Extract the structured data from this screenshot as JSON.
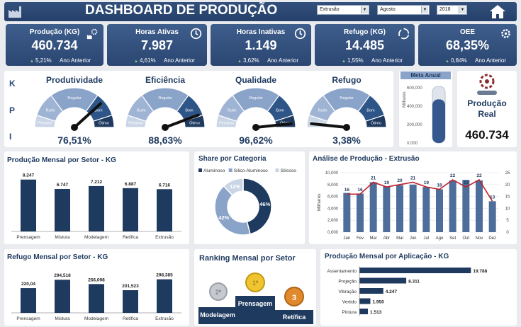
{
  "header": {
    "title": "DASHBOARD DE PRODUÇÃO",
    "filters": [
      {
        "name": "process-select",
        "value": "Extrusão"
      },
      {
        "name": "month-select",
        "value": "Agosto"
      },
      {
        "name": "year-select",
        "value": "2018"
      }
    ]
  },
  "cards": [
    {
      "label": "Produção (KG)",
      "value": "460.734",
      "change": "5,21%",
      "compare": "Ano Anterior",
      "icon": "factory-gear-icon"
    },
    {
      "label": "Horas Ativas",
      "value": "7.987",
      "change": "4,61%",
      "compare": "Ano Anterior",
      "icon": "clock-icon"
    },
    {
      "label": "Horas Inativas",
      "value": "1.149",
      "change": "3,62%",
      "compare": "Ano Anterior",
      "icon": "clock-icon"
    },
    {
      "label": "Refugo (KG)",
      "value": "14.485",
      "change": "1,55%",
      "compare": "Ano Anterior",
      "icon": "recycle-icon"
    },
    {
      "label": "OEE",
      "value": "68,35%",
      "change": "0,84%",
      "compare": "Ano Anterior",
      "icon": "gear-icon"
    }
  ],
  "kpi": {
    "letters": [
      "K",
      "P",
      "I"
    ],
    "gauge_labels": [
      "Péssimo",
      "Ruim",
      "Regular",
      "Bom",
      "Ótimo"
    ],
    "gauges": [
      {
        "title": "Produtividade",
        "value": "76,51%",
        "needle": 0.7651
      },
      {
        "title": "Eficiência",
        "value": "88,63%",
        "needle": 0.8863
      },
      {
        "title": "Qualidade",
        "value": "96,62%",
        "needle": 0.9662
      },
      {
        "title": "Refugo",
        "value": "3,38%",
        "needle": 0.0338
      }
    ]
  },
  "meta": {
    "title": "Meta Anual",
    "axis_label": "Milhares",
    "ticks": [
      "600,000",
      "400,000",
      "200,000",
      "0,000"
    ],
    "fill_fraction": 0.77
  },
  "producao_real": {
    "title_line1": "Produção",
    "title_line2": "Real",
    "value": "460.734"
  },
  "section_titles": {
    "setor": "Produção Mensal por Setor - KG",
    "share": "Share por Categoria",
    "analise": "Análise de Produção - Extrusão",
    "refugo": "Refugo Mensal por Setor - KG",
    "ranking": "Ranking Mensal por Setor",
    "aplicacao": "Produção Mensal por Aplicação - KG"
  },
  "ranking": {
    "first": "Prensagem",
    "second": "Modelagem",
    "third": "Retífica",
    "medal_labels": [
      "1º",
      "2º",
      "3"
    ]
  },
  "chart_data": [
    {
      "type": "bar",
      "title": "Produção Mensal por Setor - KG",
      "categories": [
        "Prensagem",
        "Mistura",
        "Modelagem",
        "Retífica",
        "Extrusão"
      ],
      "values": [
        8247,
        6747,
        7212,
        6887,
        6716
      ],
      "labels": [
        "8.247",
        "6.747",
        "7.212",
        "6.887",
        "6.716"
      ],
      "ylim": [
        0,
        9000
      ]
    },
    {
      "type": "pie",
      "title": "Share por Categoria",
      "categories": [
        "Aluminoso",
        "Silico-Aluminoso",
        "Silicoso"
      ],
      "values": [
        46,
        42,
        12
      ],
      "labels": [
        "46%",
        "42%",
        "12%"
      ],
      "colors": [
        "#1f3a5f",
        "#8aa3c8",
        "#c9d5e6"
      ]
    },
    {
      "type": "bar",
      "title": "Análise de Produção - Extrusão",
      "categories": [
        "Jan",
        "Fev",
        "Mar",
        "Abr",
        "Mai",
        "Jun",
        "Jul",
        "Ago",
        "Set",
        "Out",
        "Nov",
        "Dez"
      ],
      "ylabel": "Milhares",
      "y_ticks": [
        "0,000",
        "2,000",
        "4,000",
        "6,000",
        "8,000",
        "10,000"
      ],
      "y2_ticks": [
        "0",
        "5",
        "10",
        "15",
        "20",
        "25"
      ],
      "ylim": [
        0,
        10000
      ],
      "y2lim": [
        0,
        25
      ],
      "series": [
        {
          "name": "Produção",
          "type": "bar",
          "values": [
            6600,
            6500,
            8400,
            7700,
            7900,
            8000,
            7600,
            7200,
            8700,
            8800,
            8700,
            5200
          ]
        },
        {
          "name": "Linha",
          "type": "line",
          "values": [
            16,
            16,
            21,
            19,
            20,
            21,
            19,
            18,
            22,
            19,
            22,
            13
          ],
          "labels": [
            "16",
            "16",
            "21",
            "19",
            "20",
            "21",
            "19",
            "18",
            "22",
            "19",
            "22",
            "13"
          ]
        }
      ]
    },
    {
      "type": "bar",
      "title": "Refugo Mensal por Setor - KG",
      "categories": [
        "Prensagem",
        "Mistura",
        "Modelagem",
        "Retífica",
        "Extrusão"
      ],
      "values": [
        220.04,
        294.518,
        256.098,
        201.523,
        298.385
      ],
      "labels": [
        "220,04",
        "294,518",
        "256,098",
        "201,523",
        "298,385"
      ],
      "ylim": [
        0,
        340
      ]
    },
    {
      "type": "bar",
      "orientation": "horizontal",
      "title": "Produção Mensal por Aplicação - KG",
      "categories": [
        "Assentamento",
        "Projeção",
        "Vibração",
        "Vertido",
        "Pintura"
      ],
      "values": [
        19788,
        8311,
        4247,
        1950,
        1513
      ],
      "labels": [
        "19.788",
        "8.311",
        "4.247",
        "1.950",
        "1.513"
      ],
      "xlim": [
        0,
        21000
      ]
    }
  ]
}
